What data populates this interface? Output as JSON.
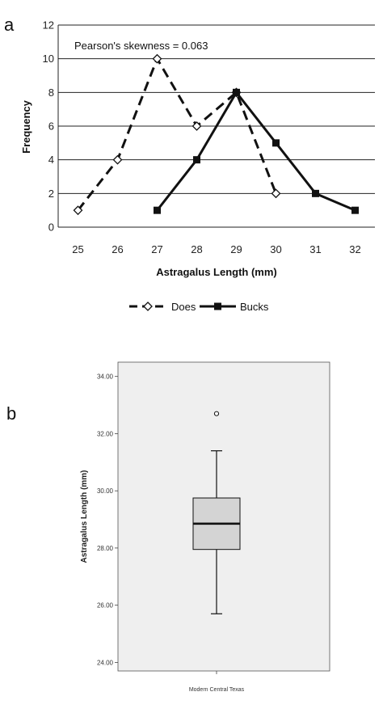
{
  "panel_a_letter": "a",
  "panel_b_letter": "b",
  "chart_data": [
    {
      "type": "line",
      "annotation": "Pearson's skewness = 0.063",
      "xlabel": "Astragalus Length (mm)",
      "ylabel": "Frequency",
      "x_ticks": [
        "25",
        "26",
        "27",
        "28",
        "29",
        "30",
        "31",
        "32"
      ],
      "y_ticks": [
        "0",
        "2",
        "4",
        "6",
        "8",
        "10",
        "12"
      ],
      "xlim": [
        24.5,
        32.5
      ],
      "ylim": [
        0,
        12
      ],
      "grid": "horizontal",
      "legend_position": "bottom",
      "series": [
        {
          "name": "Does",
          "style": "dashed",
          "marker": "open-diamond",
          "x": [
            25,
            26,
            27,
            28,
            29,
            30
          ],
          "y": [
            1,
            4,
            10,
            6,
            8,
            2
          ]
        },
        {
          "name": "Bucks",
          "style": "solid",
          "marker": "filled-square",
          "x": [
            27,
            28,
            29,
            30,
            31,
            32
          ],
          "y": [
            1,
            4,
            8,
            5,
            2,
            1
          ]
        }
      ]
    },
    {
      "type": "box",
      "ylabel": "Astragalus Length (mm)",
      "y_ticks": [
        "24.00",
        "26.00",
        "28.00",
        "30.00",
        "32.00",
        "34.00"
      ],
      "ylim": [
        23.7,
        34.5
      ],
      "categories": [
        "Modern Central Texas"
      ],
      "box": {
        "whisker_low": 25.7,
        "q1": 27.95,
        "median": 28.85,
        "q3": 29.75,
        "whisker_high": 31.4,
        "outliers": [
          32.7
        ]
      },
      "box_color": "#d4d4d4",
      "background_color": "#efefef"
    }
  ]
}
